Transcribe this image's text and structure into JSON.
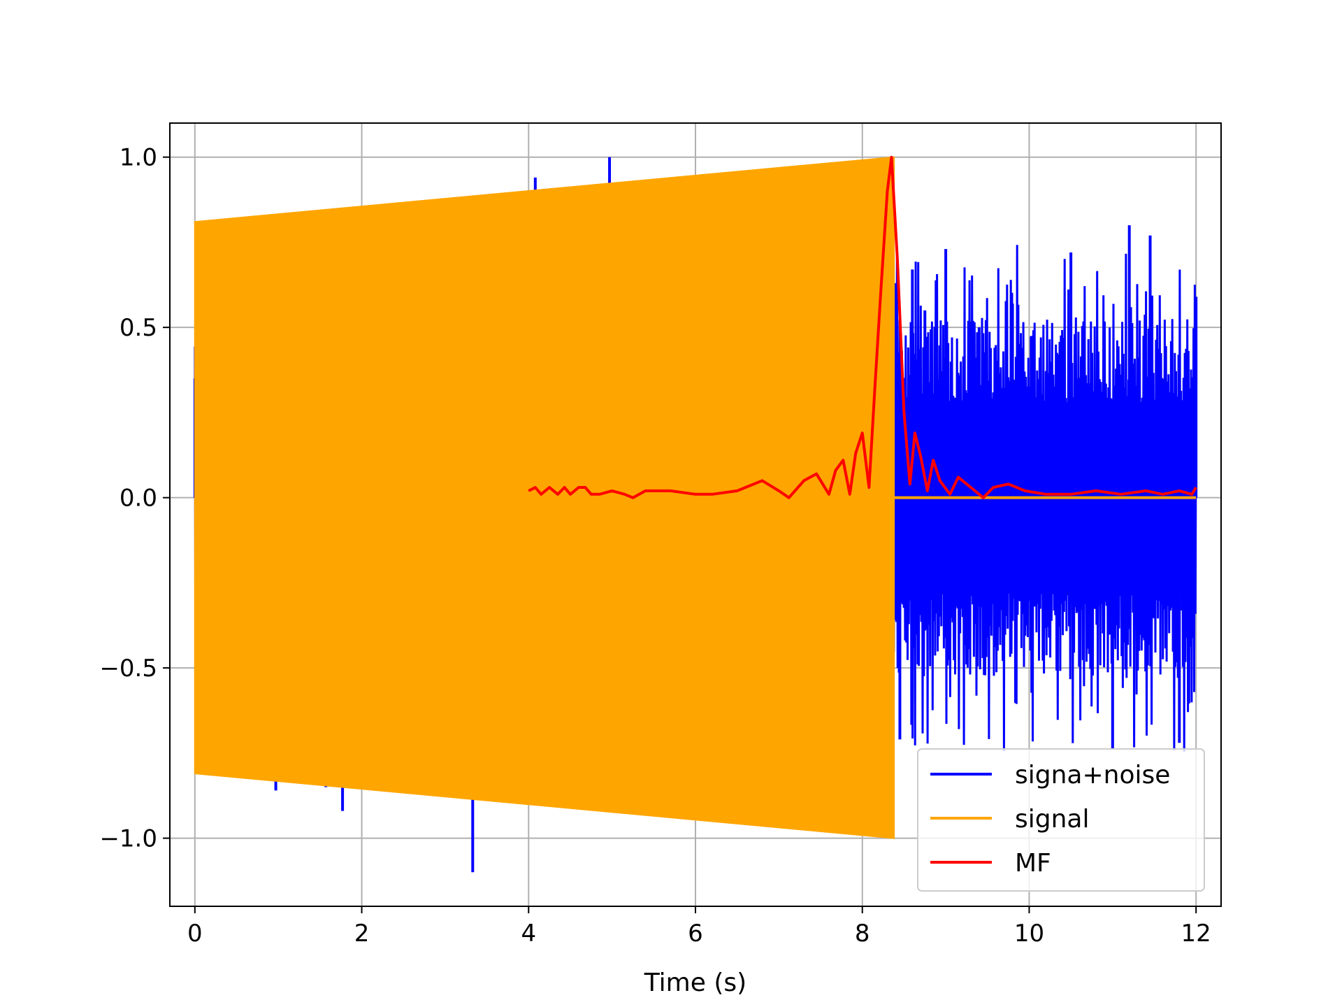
{
  "chart_data": {
    "type": "line",
    "title": "",
    "xlabel": "Time (s)",
    "ylabel": "",
    "xlim": [
      -0.3,
      12.3
    ],
    "ylim": [
      -1.2,
      1.1
    ],
    "xticks": [
      0,
      2,
      4,
      6,
      8,
      10,
      12
    ],
    "xtick_labels": [
      "0",
      "2",
      "4",
      "6",
      "8",
      "10",
      "12"
    ],
    "yticks": [
      1.0,
      0.5,
      0.0,
      -0.5,
      -1.0
    ],
    "ytick_labels": [
      "1.0",
      "0.5",
      "0.0",
      "−0.5",
      "−1.0"
    ],
    "grid": true,
    "legend_position": "lower-right",
    "series": [
      {
        "name": "signa+noise",
        "color": "#0000ff",
        "description": "noisy signal, visible mainly where signal is zero (8.4-12 s)",
        "noise_peaks": [
          {
            "x": 8.4,
            "y": 0.63
          },
          {
            "x": 8.45,
            "y": -0.71
          },
          {
            "x": 8.6,
            "y": 0.67
          },
          {
            "x": 8.75,
            "y": 0.55
          },
          {
            "x": 9.0,
            "y": 0.73
          },
          {
            "x": 9.4,
            "y": 0.5
          },
          {
            "x": 9.8,
            "y": 0.57
          },
          {
            "x": 10.5,
            "y": 0.72
          },
          {
            "x": 11.2,
            "y": 0.8
          },
          {
            "x": 11.45,
            "y": 0.77
          },
          {
            "x": 11.0,
            "y": -0.74
          },
          {
            "x": 11.8,
            "y": -0.72
          },
          {
            "x": 12.0,
            "y": 0.59
          }
        ],
        "spikes": [
          {
            "x": 0.0,
            "y": 0.35
          },
          {
            "x": 0.97,
            "y": -0.86
          },
          {
            "x": 1.57,
            "y": -0.85
          },
          {
            "x": 1.77,
            "y": -0.92
          },
          {
            "x": 3.33,
            "y": -1.1
          },
          {
            "x": 4.08,
            "y": 0.94
          },
          {
            "x": 4.97,
            "y": 1.0
          }
        ]
      },
      {
        "name": "signal",
        "color": "#ffa500",
        "x": [
          0.0,
          8.38,
          8.38,
          12.0
        ],
        "envelope_upper": [
          0.81,
          1.0,
          0.0,
          0.0
        ],
        "envelope_lower": [
          -0.81,
          -1.0,
          0.0,
          0.0
        ]
      },
      {
        "name": "MF",
        "color": "#ff0000",
        "x": [
          4.0,
          4.08,
          4.15,
          4.25,
          4.35,
          4.43,
          4.5,
          4.6,
          4.68,
          4.75,
          4.85,
          5.0,
          5.15,
          5.25,
          5.4,
          5.7,
          6.0,
          6.2,
          6.5,
          6.8,
          7.0,
          7.12,
          7.3,
          7.45,
          7.6,
          7.68,
          7.77,
          7.85,
          7.92,
          8.0,
          8.08,
          8.15,
          8.22,
          8.3,
          8.35,
          8.42,
          8.5,
          8.57,
          8.63,
          8.7,
          8.78,
          8.85,
          8.93,
          9.05,
          9.15,
          9.3,
          9.45,
          9.57,
          9.75,
          9.95,
          10.2,
          10.5,
          10.8,
          11.1,
          11.4,
          11.6,
          11.8,
          11.95,
          12.0
        ],
        "y": [
          0.02,
          0.03,
          0.01,
          0.03,
          0.01,
          0.03,
          0.01,
          0.03,
          0.03,
          0.01,
          0.01,
          0.02,
          0.01,
          0.0,
          0.02,
          0.02,
          0.01,
          0.01,
          0.02,
          0.05,
          0.02,
          0.0,
          0.05,
          0.07,
          0.01,
          0.08,
          0.11,
          0.01,
          0.13,
          0.19,
          0.03,
          0.32,
          0.6,
          0.9,
          1.0,
          0.7,
          0.25,
          0.04,
          0.19,
          0.12,
          0.02,
          0.11,
          0.05,
          0.01,
          0.06,
          0.03,
          0.0,
          0.03,
          0.04,
          0.02,
          0.01,
          0.01,
          0.02,
          0.01,
          0.02,
          0.01,
          0.02,
          0.01,
          0.03
        ]
      }
    ]
  }
}
